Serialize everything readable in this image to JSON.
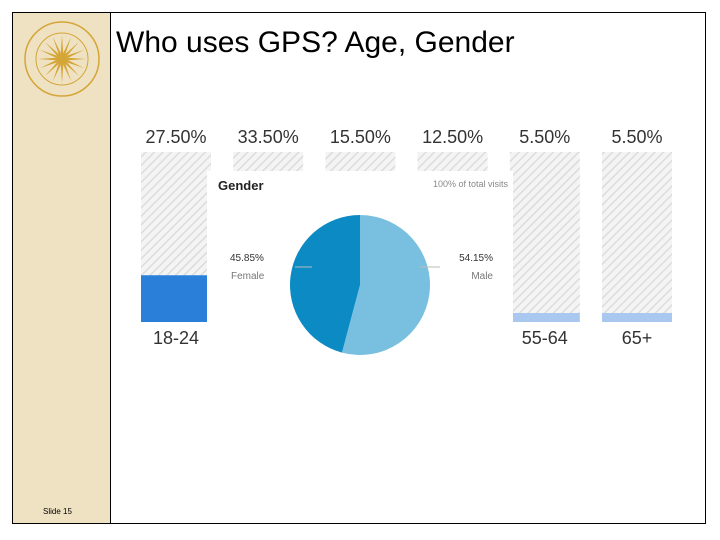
{
  "slide": {
    "title": "Who uses GPS? Age, Gender",
    "slide_number": "Slide 15"
  },
  "colors": {
    "sidebar": "#efe2c2",
    "seal": "#d4a537",
    "bar_fill": "#2a7fd9",
    "bar_fill_pale": "#a9c8ef",
    "pie_female": "#0b8ac4",
    "pie_male": "#79c0e0"
  },
  "chart_data": [
    {
      "type": "bar",
      "categories": [
        "18-24",
        "",
        "",
        "",
        "55-64",
        "65+"
      ],
      "values": [
        27.5,
        33.5,
        15.5,
        12.5,
        5.5,
        5.5
      ],
      "value_labels": [
        "27.50%",
        "33.50%",
        "15.50%",
        "12.50%",
        "5.50%",
        "5.50%"
      ],
      "ylim": [
        0,
        100
      ]
    },
    {
      "type": "pie",
      "title": "Gender",
      "subtitle": "100% of total visits",
      "slices": [
        {
          "label": "Female",
          "value": 45.85,
          "value_label": "45.85%"
        },
        {
          "label": "Male",
          "value": 54.15,
          "value_label": "54.15%"
        }
      ]
    }
  ]
}
